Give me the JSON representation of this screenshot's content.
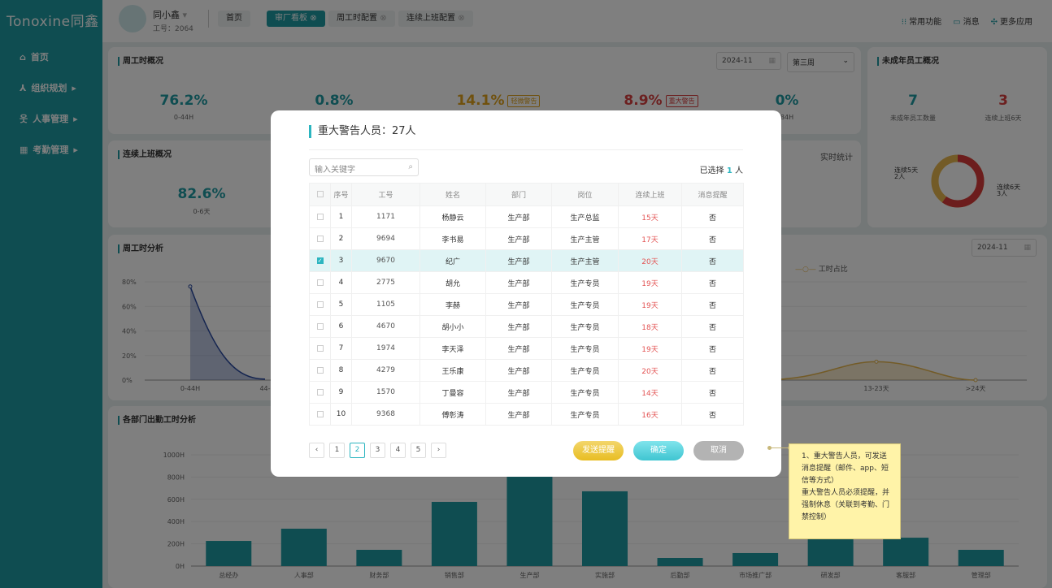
{
  "brand": {
    "logo": "Tonoxine同鑫"
  },
  "user": {
    "name": "同小鑫",
    "id_label": "工号：2064"
  },
  "tabs": [
    {
      "label": "首页"
    },
    {
      "label": "审厂看板"
    },
    {
      "label": "周工时配置"
    },
    {
      "label": "连续上班配置"
    }
  ],
  "top_links": [
    {
      "icon": "grid-icon",
      "label": "常用功能"
    },
    {
      "icon": "message-icon",
      "label": "消息"
    },
    {
      "icon": "apps-icon",
      "label": "更多应用"
    }
  ],
  "sidebar": {
    "items": [
      {
        "icon": "home-icon",
        "label": "首页"
      },
      {
        "icon": "org-icon",
        "label": "组织规划"
      },
      {
        "icon": "people-icon",
        "label": "人事管理"
      },
      {
        "icon": "calendar-icon",
        "label": "考勤管理"
      }
    ]
  },
  "weekly": {
    "title": "周工时概况",
    "month": "2024-11",
    "week": "第三周",
    "stats": [
      {
        "value": "76.2%",
        "label": "0-44H",
        "color": "#1f9ba3"
      },
      {
        "value": "0.8%",
        "label": "",
        "color": "#1f9ba3"
      },
      {
        "value": "14.1%",
        "badge": "轻微警告",
        "color": "#e0a21c"
      },
      {
        "value": "8.9%",
        "badge": "重大警告",
        "color": "#d84040"
      },
      {
        "value": "0%",
        "label": "84H",
        "color": "#1f9ba3"
      }
    ]
  },
  "consecutive": {
    "title": "连续上班概况",
    "realtime": "实时统计",
    "value": "82.6%",
    "label": "0-6天"
  },
  "minor": {
    "title": "未成年员工概况",
    "stats": [
      {
        "value": "7",
        "label": "未成年员工数量"
      },
      {
        "value": "3",
        "label": "连续上班6天"
      }
    ],
    "donut": [
      {
        "label": "连续5天",
        "count": "2人",
        "value": 2,
        "color": "#e6b64e"
      },
      {
        "label": "连续6天",
        "count": "3人",
        "value": 3,
        "color": "#d93a3a"
      }
    ]
  },
  "analysis": {
    "title": "周工时分析",
    "month": "2024-11",
    "legend": "工时占比"
  },
  "chart_data": [
    {
      "type": "area",
      "title": "周工时分析",
      "categories": [
        "0-44H",
        "44-"
      ],
      "values": [
        76.2,
        0.8
      ],
      "ylim": [
        0,
        80
      ],
      "yticks": [
        "0%",
        "20%",
        "40%",
        "60%",
        "80%"
      ],
      "color": "#2a4aa0",
      "grid": true
    },
    {
      "type": "area",
      "categories": [
        "13-23天",
        ">24天"
      ],
      "series": [
        {
          "name": "工时占比",
          "values": [
            15,
            0
          ]
        }
      ],
      "ylim": [
        0,
        80
      ],
      "color": "#e6b64e",
      "grid": true
    },
    {
      "type": "bar",
      "title": "各部门出勤工时分析",
      "categories": [
        "总经办",
        "人事部",
        "财务部",
        "销售部",
        "生产部",
        "实施部",
        "后勤部",
        "市场推广部",
        "研发部",
        "客服部",
        "管理部"
      ],
      "values": [
        226,
        336,
        146,
        577,
        850,
        672,
        73,
        117,
        250,
        255,
        146
      ],
      "ylim": [
        0,
        1000
      ],
      "yticks": [
        "0H",
        "200H",
        "400H",
        "600H",
        "800H",
        "1000H"
      ],
      "color": "#1f9ba3",
      "grid": true
    }
  ],
  "modal": {
    "title": "重大警告人员：27人",
    "search_placeholder": "输入关键字",
    "selected_prefix": "已选择",
    "selected_count": "1",
    "selected_suffix": "人",
    "columns": [
      "序号",
      "工号",
      "姓名",
      "部门",
      "岗位",
      "连续上班",
      "消息提醒"
    ],
    "rows": [
      {
        "no": "1",
        "id": "1171",
        "name": "杨静云",
        "dept": "生产部",
        "post": "生产总监",
        "days": "15天",
        "notify": "否",
        "checked": false
      },
      {
        "no": "2",
        "id": "9694",
        "name": "李书易",
        "dept": "生产部",
        "post": "生产主管",
        "days": "17天",
        "notify": "否",
        "checked": false
      },
      {
        "no": "3",
        "id": "9670",
        "name": "纪广",
        "dept": "生产部",
        "post": "生产主管",
        "days": "20天",
        "notify": "否",
        "checked": true
      },
      {
        "no": "4",
        "id": "2775",
        "name": "胡允",
        "dept": "生产部",
        "post": "生产专员",
        "days": "19天",
        "notify": "否",
        "checked": false
      },
      {
        "no": "5",
        "id": "1105",
        "name": "李赫",
        "dept": "生产部",
        "post": "生产专员",
        "days": "19天",
        "notify": "否",
        "checked": false
      },
      {
        "no": "6",
        "id": "4670",
        "name": "胡小小",
        "dept": "生产部",
        "post": "生产专员",
        "days": "18天",
        "notify": "否",
        "checked": false
      },
      {
        "no": "7",
        "id": "1974",
        "name": "李天泽",
        "dept": "生产部",
        "post": "生产专员",
        "days": "19天",
        "notify": "否",
        "checked": false
      },
      {
        "no": "8",
        "id": "4279",
        "name": "王乐康",
        "dept": "生产部",
        "post": "生产专员",
        "days": "20天",
        "notify": "否",
        "checked": false
      },
      {
        "no": "9",
        "id": "1570",
        "name": "丁曼容",
        "dept": "生产部",
        "post": "生产专员",
        "days": "14天",
        "notify": "否",
        "checked": false
      },
      {
        "no": "10",
        "id": "9368",
        "name": "傅彰涛",
        "dept": "生产部",
        "post": "生产专员",
        "days": "16天",
        "notify": "否",
        "checked": false
      }
    ],
    "pages": [
      "1",
      "2",
      "3",
      "4",
      "5"
    ],
    "current_page": "2",
    "buttons": {
      "send": "发送提醒",
      "ok": "确定",
      "cancel": "取消"
    }
  },
  "note": {
    "line1": "1、重大警告人员，可发送消息提醒（邮件、app、短信等方式）",
    "line2": "重大警告人员必须提醒，并强制休息（关联到考勤、门禁控制）"
  }
}
